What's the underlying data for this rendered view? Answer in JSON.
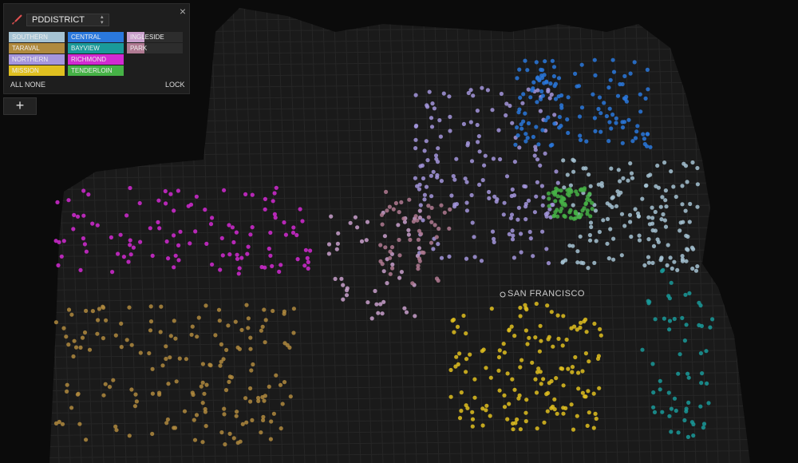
{
  "panel": {
    "field": "PDDISTRICT",
    "legend": [
      {
        "label": "SOUTHERN",
        "color": "#a6c3d3"
      },
      {
        "label": "TARAVAL",
        "color": "#b08a3e"
      },
      {
        "label": "NORTHERN",
        "color": "#a596dd"
      },
      {
        "label": "MISSION",
        "color": "#e0c020"
      },
      {
        "label": "CENTRAL",
        "color": "#2a78dc"
      },
      {
        "label": "BAYVIEW",
        "color": "#1a9a9a"
      },
      {
        "label": "RICHMOND",
        "color": "#d22ad2"
      },
      {
        "label": "TENDERLOIN",
        "color": "#46b246"
      },
      {
        "label": "INGLESIDE",
        "color": "#c9a0cc"
      },
      {
        "label": "PARK",
        "color": "#b07a92"
      }
    ],
    "all": "ALL",
    "none": "NONE",
    "lock": "LOCK",
    "add": "+"
  },
  "map": {
    "city_label": "SAN FRANCISCO"
  }
}
